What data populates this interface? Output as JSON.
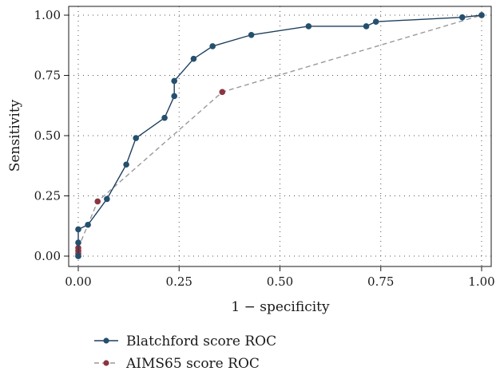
{
  "chart_data": {
    "type": "line",
    "xlabel": "1 − specificity",
    "ylabel": "Sensitivity",
    "xlim": [
      0,
      1
    ],
    "ylim": [
      0,
      1
    ],
    "xticks": [
      "0.00",
      "0.25",
      "0.50",
      "0.75",
      "1.00"
    ],
    "yticks": [
      "0.00",
      "0.25",
      "0.50",
      "0.75",
      "1.00"
    ],
    "grid": "dotted",
    "legend_position": "bottom-left",
    "series": [
      {
        "name": "Blatchford score ROC",
        "color": "#1f3f5f",
        "marker_color": "#24506e",
        "line_style": "solid",
        "x": [
          0,
          0,
          0,
          0.024,
          0.071,
          0.119,
          0.143,
          0.214,
          0.238,
          0.238,
          0.286,
          0.333,
          0.429,
          0.571,
          0.714,
          0.738,
          0.952,
          1.0
        ],
        "y": [
          0,
          0.056,
          0.111,
          0.13,
          0.237,
          0.38,
          0.49,
          0.574,
          0.664,
          0.727,
          0.819,
          0.871,
          0.918,
          0.954,
          0.954,
          0.973,
          0.991,
          1.0
        ]
      },
      {
        "name": "AIMS65 score ROC",
        "color": "#999999",
        "marker_color": "#8c3540",
        "line_style": "dashed",
        "x": [
          0,
          0,
          0,
          0,
          0.048,
          0.357,
          1.0
        ],
        "y": [
          0,
          0.01,
          0.022,
          0.034,
          0.227,
          0.681,
          1.0
        ]
      }
    ]
  }
}
